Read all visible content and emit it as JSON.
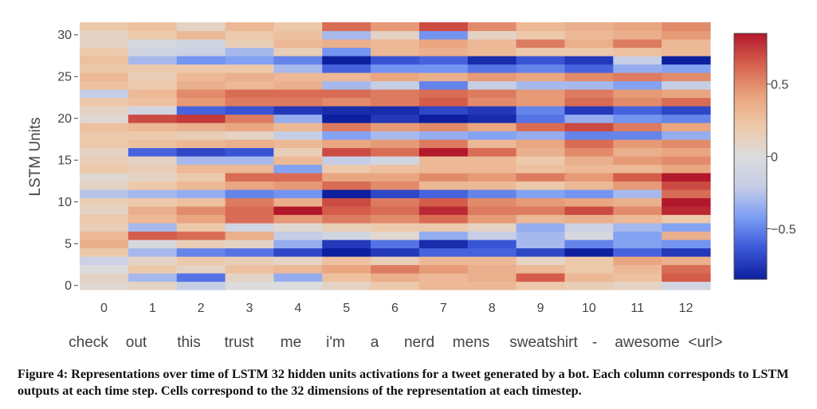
{
  "chart_data": {
    "type": "heatmap",
    "title": "",
    "xlabel": "",
    "ylabel": "LSTM Units",
    "x": [
      0,
      1,
      2,
      3,
      4,
      5,
      6,
      7,
      8,
      9,
      10,
      11,
      12
    ],
    "y_ticks": [
      0,
      5,
      10,
      15,
      20,
      25,
      30
    ],
    "tokens": [
      "check",
      "out",
      "this",
      "trust",
      "me",
      "i'm",
      "a",
      "nerd",
      "mens",
      "sweatshirt",
      "-",
      "awesome",
      "<url>"
    ],
    "zlim": [
      -0.85,
      0.85
    ],
    "colorbar_ticks": [
      {
        "value": 0.5,
        "label": "0.5"
      },
      {
        "value": 0,
        "label": "0"
      },
      {
        "value": -0.5,
        "label": "−0.5"
      }
    ],
    "colorscale": [
      "#0d1f9e",
      "#3b57d8",
      "#7b9cf4",
      "#c5cde6",
      "#dcdcdc",
      "#eec8a8",
      "#e8a27c",
      "#d6604d",
      "#b2182b"
    ],
    "rows_bottom_to_top": [
      [
        0.05,
        0.1,
        -0.2,
        0.0,
        0.0,
        0.1,
        0.2,
        0.3,
        0.3,
        0.2,
        0.15,
        0.1,
        -0.1
      ],
      [
        0.1,
        -0.3,
        -0.55,
        0.1,
        -0.35,
        0.25,
        0.35,
        0.3,
        0.35,
        0.65,
        0.3,
        0.25,
        0.65
      ],
      [
        0.0,
        0.2,
        0.1,
        0.25,
        0.3,
        0.4,
        0.55,
        0.45,
        0.35,
        0.3,
        0.2,
        0.3,
        0.6
      ],
      [
        -0.15,
        0.1,
        0.2,
        0.15,
        0.1,
        0.25,
        0.15,
        0.3,
        0.3,
        0.1,
        0.2,
        0.4,
        0.35
      ],
      [
        0.2,
        -0.3,
        -0.5,
        -0.55,
        -0.7,
        -0.85,
        -0.75,
        -0.6,
        -0.6,
        -0.7,
        -0.85,
        -0.6,
        -0.75
      ],
      [
        0.35,
        -0.05,
        0.15,
        0.1,
        -0.35,
        -0.75,
        -0.55,
        -0.8,
        -0.65,
        -0.3,
        -0.5,
        -0.4,
        -0.45
      ],
      [
        0.3,
        0.65,
        0.6,
        0.35,
        -0.2,
        -0.1,
        0.05,
        -0.35,
        -0.2,
        -0.3,
        -0.05,
        -0.4,
        0.35
      ],
      [
        0.15,
        -0.3,
        0.2,
        -0.1,
        0.05,
        0.15,
        0.2,
        0.2,
        0.1,
        -0.35,
        -0.15,
        -0.3,
        -0.4
      ],
      [
        0.2,
        0.3,
        0.4,
        0.6,
        0.45,
        0.55,
        0.5,
        0.6,
        0.45,
        0.3,
        0.35,
        0.3,
        0.2
      ],
      [
        0.1,
        0.35,
        0.5,
        0.6,
        0.85,
        0.65,
        0.6,
        0.8,
        0.55,
        0.55,
        0.7,
        0.5,
        0.8
      ],
      [
        0.15,
        0.2,
        0.25,
        0.55,
        0.35,
        0.7,
        0.55,
        0.65,
        0.5,
        0.45,
        0.4,
        0.35,
        0.85
      ],
      [
        -0.25,
        -0.3,
        -0.35,
        -0.5,
        -0.45,
        -0.9,
        -0.7,
        -0.6,
        -0.5,
        -0.4,
        -0.45,
        -0.3,
        0.6
      ],
      [
        0.1,
        0.2,
        0.3,
        0.4,
        0.45,
        0.6,
        0.5,
        0.3,
        0.3,
        0.2,
        0.3,
        0.45,
        0.7
      ],
      [
        0.05,
        0.1,
        0.2,
        0.6,
        0.6,
        0.4,
        0.4,
        0.5,
        0.45,
        0.55,
        0.45,
        0.65,
        0.85
      ],
      [
        0.2,
        0.15,
        0.3,
        0.3,
        -0.4,
        0.2,
        0.25,
        0.3,
        0.3,
        0.25,
        0.3,
        0.3,
        0.4
      ],
      [
        0.15,
        0.1,
        -0.3,
        -0.3,
        0.3,
        -0.2,
        -0.1,
        0.3,
        0.3,
        0.2,
        0.35,
        0.45,
        0.5
      ],
      [
        0.1,
        -0.6,
        -0.7,
        -0.65,
        0.15,
        0.7,
        0.6,
        0.85,
        0.6,
        0.35,
        0.5,
        0.35,
        0.4
      ],
      [
        0.2,
        0.25,
        0.3,
        0.35,
        0.3,
        0.4,
        0.45,
        0.55,
        0.3,
        0.4,
        0.6,
        0.45,
        0.5
      ],
      [
        0.2,
        0.2,
        0.15,
        0.1,
        -0.2,
        -0.4,
        -0.3,
        -0.35,
        -0.4,
        -0.35,
        -0.5,
        -0.5,
        -0.35
      ],
      [
        0.25,
        0.3,
        0.35,
        0.4,
        0.3,
        0.55,
        0.45,
        0.5,
        0.4,
        0.6,
        0.7,
        0.55,
        0.4
      ],
      [
        0.05,
        0.7,
        0.75,
        0.55,
        -0.35,
        -0.9,
        -0.75,
        -1.0,
        -0.8,
        -0.55,
        -0.35,
        -0.45,
        -0.5
      ],
      [
        0.1,
        -0.1,
        -0.6,
        -0.65,
        -0.75,
        -0.8,
        -0.8,
        -0.7,
        -0.75,
        -0.5,
        -0.75,
        -0.6,
        -0.7
      ],
      [
        0.2,
        0.25,
        0.45,
        0.55,
        0.55,
        0.5,
        0.55,
        0.65,
        0.5,
        0.45,
        0.6,
        0.5,
        0.6
      ],
      [
        -0.2,
        0.3,
        0.5,
        0.6,
        0.6,
        0.6,
        0.55,
        0.6,
        0.55,
        0.45,
        0.55,
        0.45,
        0.4
      ],
      [
        0.25,
        0.2,
        0.35,
        0.3,
        0.35,
        -0.3,
        -0.2,
        -0.5,
        -0.2,
        -0.3,
        -0.3,
        -0.4,
        -0.2
      ],
      [
        0.3,
        0.15,
        0.3,
        0.35,
        0.3,
        0.3,
        0.4,
        0.35,
        0.45,
        0.4,
        0.5,
        0.55,
        0.5
      ],
      [
        0.2,
        0.2,
        0.2,
        0.2,
        -0.3,
        -0.6,
        -0.45,
        -0.45,
        -0.55,
        -0.5,
        -0.6,
        -0.35,
        -0.4
      ],
      [
        0.25,
        -0.3,
        -0.45,
        -0.4,
        -0.5,
        -0.9,
        -0.65,
        -0.6,
        -0.8,
        -0.65,
        -0.75,
        -0.2,
        -0.85
      ],
      [
        0.2,
        -0.1,
        -0.15,
        -0.3,
        0.15,
        -0.45,
        0.3,
        0.35,
        0.3,
        0.2,
        0.2,
        0.25,
        0.3
      ],
      [
        0.1,
        -0.05,
        -0.1,
        0.15,
        0.3,
        0.35,
        0.3,
        0.4,
        0.3,
        0.55,
        0.35,
        0.55,
        0.3
      ],
      [
        0.1,
        0.2,
        0.3,
        0.2,
        0.25,
        -0.3,
        0.1,
        -0.45,
        0.1,
        0.2,
        0.3,
        0.35,
        0.45
      ],
      [
        0.2,
        0.25,
        0.1,
        0.3,
        0.2,
        0.6,
        0.45,
        0.7,
        0.5,
        0.3,
        0.35,
        0.4,
        0.5
      ]
    ]
  },
  "caption": "Figure 4: Representations over time of LSTM 32 hidden units activations for a tweet generated by a bot. Each column corresponds to LSTM outputs at each time step. Cells correspond to the 32 dimensions of the representation at each timestep."
}
